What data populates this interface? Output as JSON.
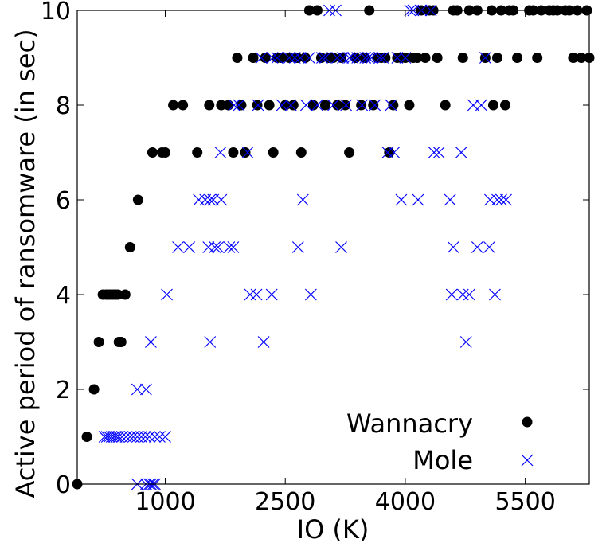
{
  "chart_data": {
    "type": "scatter",
    "xlabel": "IO (K)",
    "ylabel": "Active period of ransomware (in sec)",
    "xlim": [
      -100,
      6300
    ],
    "ylim": [
      0,
      10
    ],
    "xticks": [
      1000,
      2500,
      4000,
      5500
    ],
    "xtick_labels": [
      "1000",
      "2500",
      "4000",
      "5500"
    ],
    "yticks": [
      0,
      2,
      4,
      6,
      8,
      10
    ],
    "ytick_labels": [
      "0",
      "2",
      "4",
      "6",
      "8",
      "10"
    ],
    "grid": false,
    "legend_position": "bottom-right",
    "series": [
      {
        "name": "Wannacry",
        "marker": "circle",
        "color": "#000000",
        "points": [
          [
            -100,
            0
          ],
          [
            20,
            1
          ],
          [
            110,
            2
          ],
          [
            170,
            3
          ],
          [
            220,
            4
          ],
          [
            260,
            4
          ],
          [
            290,
            4
          ],
          [
            320,
            4
          ],
          [
            350,
            4
          ],
          [
            380,
            4
          ],
          [
            410,
            4
          ],
          [
            420,
            3
          ],
          [
            450,
            3
          ],
          [
            500,
            4
          ],
          [
            560,
            5
          ],
          [
            660,
            6
          ],
          [
            840,
            7
          ],
          [
            960,
            7
          ],
          [
            1000,
            7
          ],
          [
            1100,
            8
          ],
          [
            1220,
            8
          ],
          [
            1400,
            7
          ],
          [
            1550,
            8
          ],
          [
            1700,
            8
          ],
          [
            1790,
            8
          ],
          [
            1850,
            7
          ],
          [
            1900,
            9
          ],
          [
            1950,
            8
          ],
          [
            2000,
            7
          ],
          [
            2100,
            9
          ],
          [
            2150,
            8
          ],
          [
            2250,
            9
          ],
          [
            2300,
            8
          ],
          [
            2350,
            7
          ],
          [
            2400,
            9
          ],
          [
            2450,
            9
          ],
          [
            2500,
            8
          ],
          [
            2550,
            9
          ],
          [
            2600,
            8
          ],
          [
            2650,
            9
          ],
          [
            2700,
            7
          ],
          [
            2750,
            9
          ],
          [
            2800,
            10
          ],
          [
            2850,
            8
          ],
          [
            2900,
            10
          ],
          [
            2950,
            9
          ],
          [
            3000,
            8
          ],
          [
            3050,
            9
          ],
          [
            3100,
            9
          ],
          [
            3150,
            8
          ],
          [
            3200,
            9
          ],
          [
            3250,
            8
          ],
          [
            3300,
            7
          ],
          [
            3380,
            9
          ],
          [
            3450,
            8
          ],
          [
            3500,
            9
          ],
          [
            3550,
            10
          ],
          [
            3600,
            8
          ],
          [
            3650,
            9
          ],
          [
            3700,
            9
          ],
          [
            3750,
            9
          ],
          [
            3800,
            7
          ],
          [
            3850,
            8
          ],
          [
            3900,
            9
          ],
          [
            3950,
            9
          ],
          [
            4000,
            9
          ],
          [
            4050,
            8
          ],
          [
            4100,
            9
          ],
          [
            4150,
            9
          ],
          [
            4200,
            10
          ],
          [
            4250,
            9
          ],
          [
            4300,
            10
          ],
          [
            4350,
            10
          ],
          [
            4400,
            9
          ],
          [
            4500,
            8
          ],
          [
            4600,
            10
          ],
          [
            4650,
            10
          ],
          [
            4720,
            9
          ],
          [
            4800,
            10
          ],
          [
            4900,
            10
          ],
          [
            5000,
            9
          ],
          [
            5080,
            10
          ],
          [
            5100,
            8
          ],
          [
            5150,
            9
          ],
          [
            5200,
            10
          ],
          [
            5250,
            8
          ],
          [
            5300,
            10
          ],
          [
            5350,
            10
          ],
          [
            5400,
            9
          ],
          [
            5550,
            10
          ],
          [
            5600,
            10
          ],
          [
            5650,
            9
          ],
          [
            5700,
            10
          ],
          [
            5800,
            10
          ],
          [
            5850,
            10
          ],
          [
            5900,
            10
          ],
          [
            6000,
            10
          ],
          [
            6050,
            10
          ],
          [
            6100,
            9
          ],
          [
            6150,
            10
          ],
          [
            6200,
            9
          ],
          [
            6270,
            10
          ],
          [
            6300,
            9
          ]
        ]
      },
      {
        "name": "Mole",
        "marker": "x",
        "color": "#0000ff",
        "points": [
          [
            240,
            1
          ],
          [
            270,
            1
          ],
          [
            300,
            1
          ],
          [
            330,
            1
          ],
          [
            360,
            1
          ],
          [
            390,
            1
          ],
          [
            420,
            1
          ],
          [
            460,
            1
          ],
          [
            510,
            1
          ],
          [
            560,
            1
          ],
          [
            600,
            1
          ],
          [
            650,
            1
          ],
          [
            700,
            1
          ],
          [
            750,
            1
          ],
          [
            800,
            1
          ],
          [
            870,
            1
          ],
          [
            930,
            1
          ],
          [
            650,
            0
          ],
          [
            760,
            0
          ],
          [
            800,
            0
          ],
          [
            820,
            0
          ],
          [
            850,
            0
          ],
          [
            870,
            0
          ],
          [
            650,
            2
          ],
          [
            760,
            2
          ],
          [
            820,
            3
          ],
          [
            1020,
            4
          ],
          [
            1000,
            1
          ],
          [
            1160,
            5
          ],
          [
            1300,
            5
          ],
          [
            1420,
            6
          ],
          [
            1500,
            6
          ],
          [
            1540,
            5
          ],
          [
            1560,
            6
          ],
          [
            1600,
            6
          ],
          [
            1620,
            5
          ],
          [
            1660,
            5
          ],
          [
            1700,
            6
          ],
          [
            1560,
            3
          ],
          [
            1690,
            7
          ],
          [
            1800,
            5
          ],
          [
            1850,
            5
          ],
          [
            1860,
            8
          ],
          [
            1920,
            8
          ],
          [
            2030,
            7
          ],
          [
            2060,
            4
          ],
          [
            2140,
            4
          ],
          [
            2160,
            8
          ],
          [
            2200,
            9
          ],
          [
            2230,
            3
          ],
          [
            2330,
            4
          ],
          [
            2340,
            9
          ],
          [
            2400,
            9
          ],
          [
            2460,
            8
          ],
          [
            2550,
            9
          ],
          [
            2570,
            8
          ],
          [
            2620,
            9
          ],
          [
            2660,
            5
          ],
          [
            2690,
            9
          ],
          [
            2720,
            6
          ],
          [
            2760,
            8
          ],
          [
            2800,
            9
          ],
          [
            2820,
            4
          ],
          [
            2900,
            8
          ],
          [
            2960,
            9
          ],
          [
            3000,
            9
          ],
          [
            3050,
            10
          ],
          [
            3100,
            8
          ],
          [
            3130,
            10
          ],
          [
            3150,
            9
          ],
          [
            3200,
            5
          ],
          [
            3220,
            9
          ],
          [
            3260,
            8
          ],
          [
            3300,
            9
          ],
          [
            3340,
            9
          ],
          [
            3400,
            9
          ],
          [
            3460,
            8
          ],
          [
            3500,
            9
          ],
          [
            3540,
            9
          ],
          [
            3580,
            9
          ],
          [
            3620,
            8
          ],
          [
            3680,
            9
          ],
          [
            3720,
            9
          ],
          [
            3780,
            7
          ],
          [
            3820,
            8
          ],
          [
            3860,
            7
          ],
          [
            3900,
            9
          ],
          [
            3950,
            6
          ],
          [
            4000,
            9
          ],
          [
            4060,
            10
          ],
          [
            4100,
            10
          ],
          [
            4160,
            6
          ],
          [
            4200,
            10
          ],
          [
            4320,
            10
          ],
          [
            4360,
            7
          ],
          [
            4420,
            7
          ],
          [
            4560,
            6
          ],
          [
            4580,
            4
          ],
          [
            4600,
            5
          ],
          [
            4700,
            7
          ],
          [
            4720,
            4
          ],
          [
            4760,
            3
          ],
          [
            4800,
            4
          ],
          [
            4850,
            8
          ],
          [
            4900,
            5
          ],
          [
            4950,
            8
          ],
          [
            5000,
            9
          ],
          [
            5050,
            5
          ],
          [
            5060,
            6
          ],
          [
            5120,
            4
          ],
          [
            5150,
            6
          ],
          [
            5200,
            6
          ],
          [
            5260,
            6
          ]
        ]
      }
    ]
  }
}
